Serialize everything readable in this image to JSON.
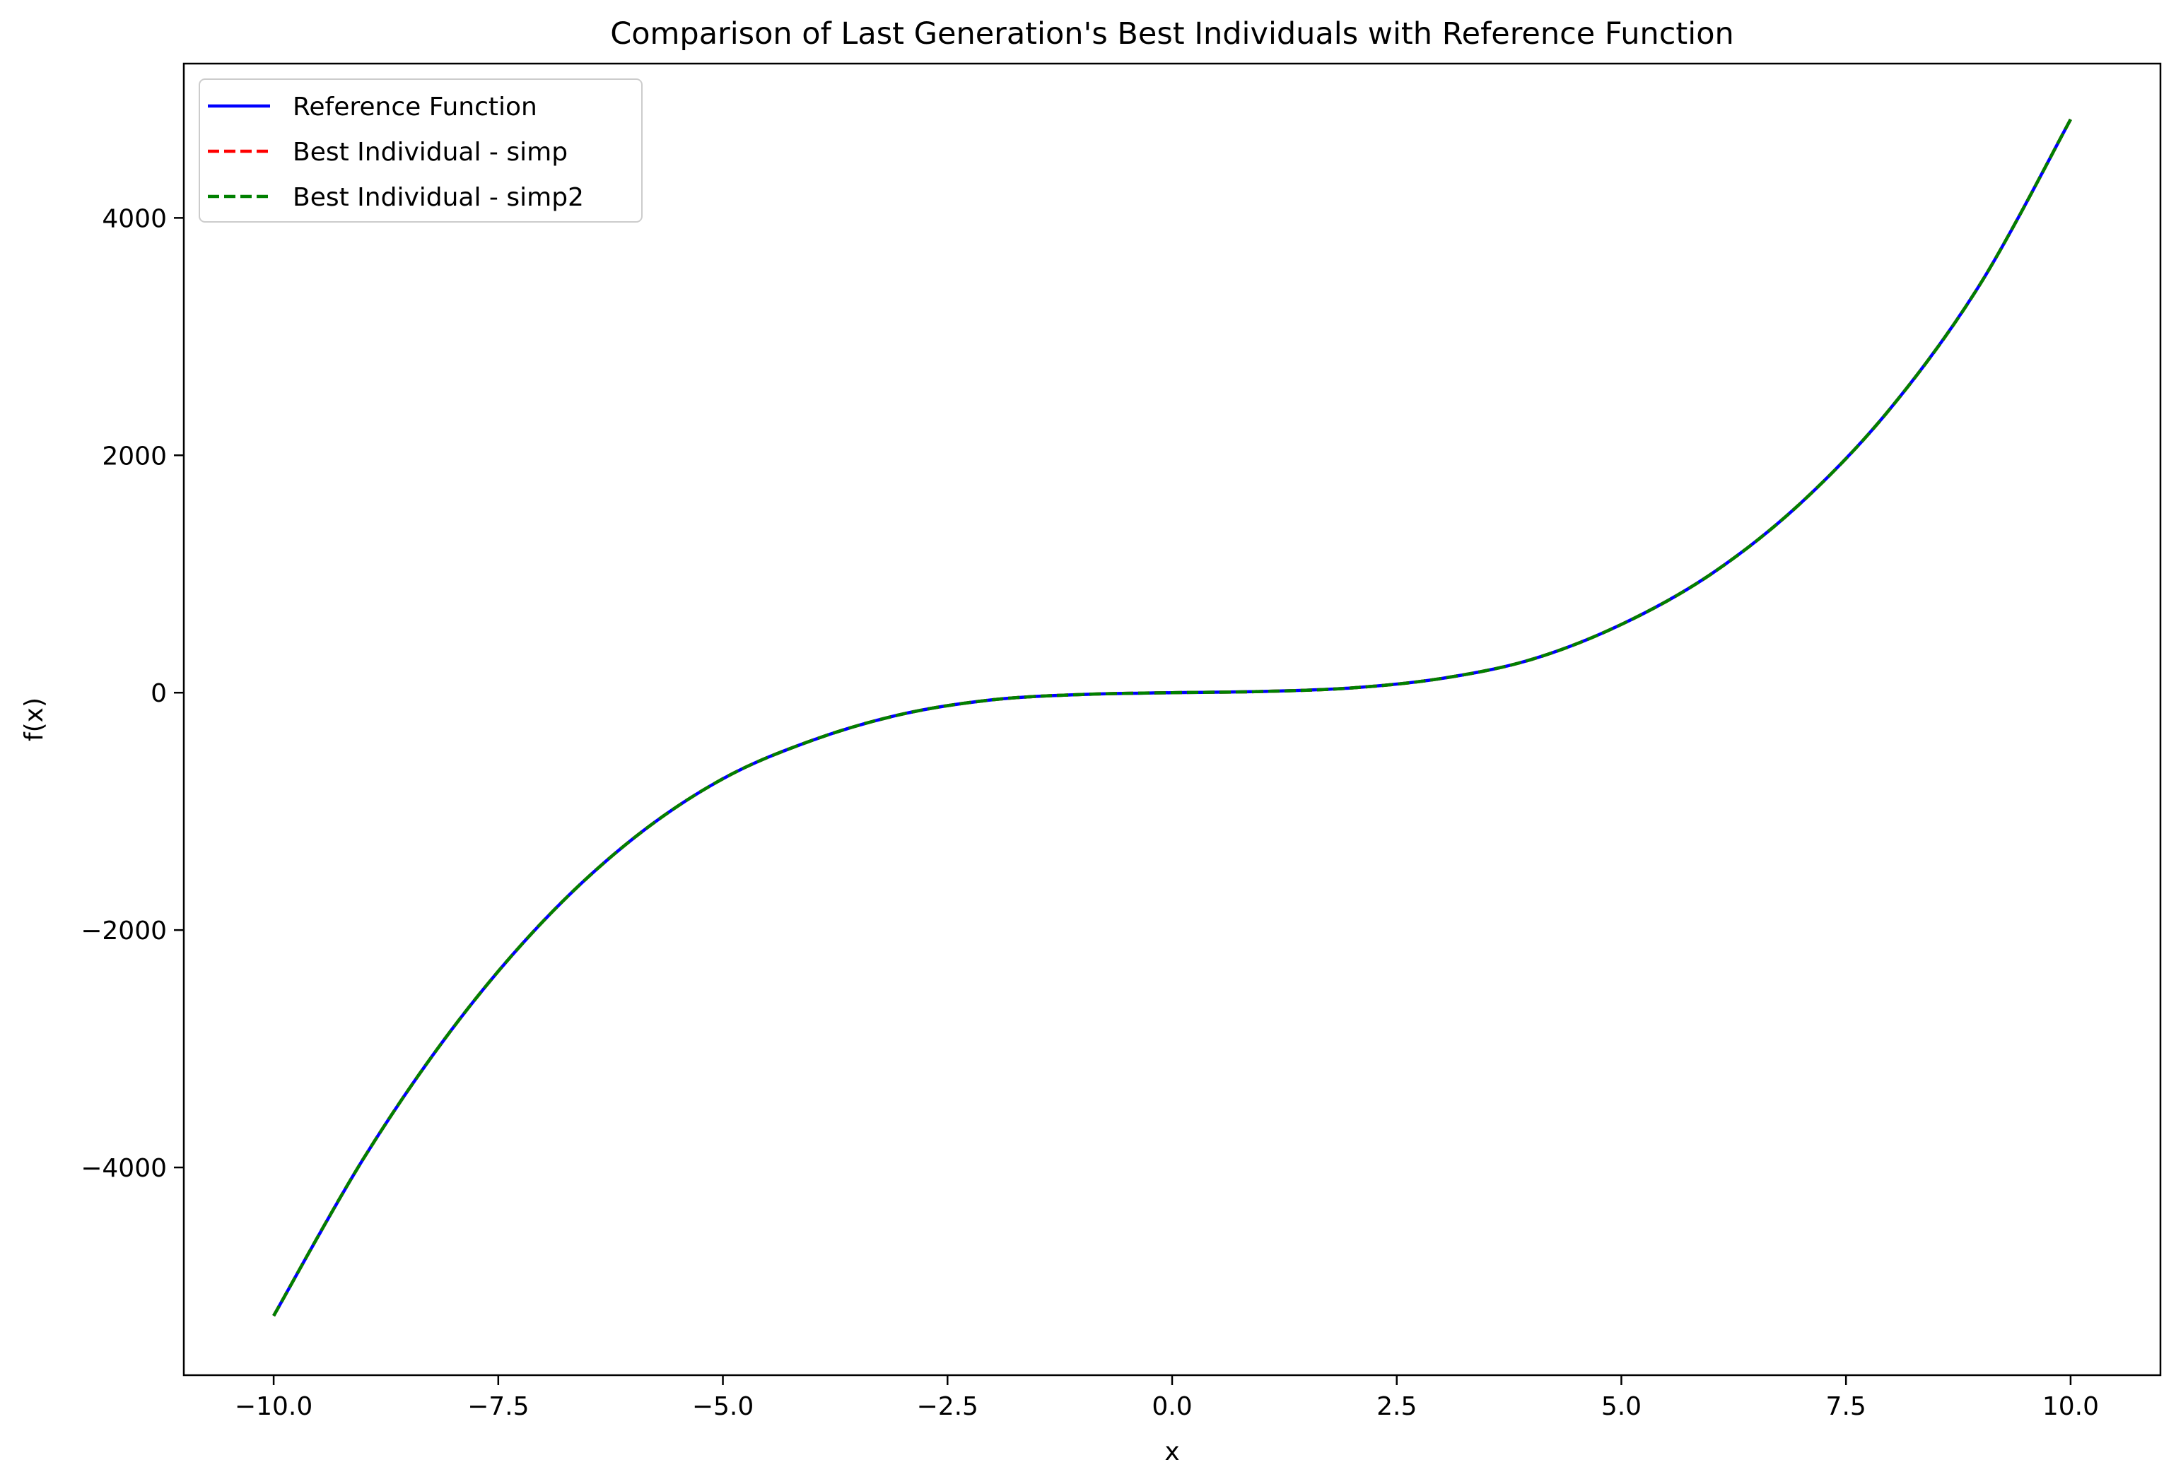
{
  "chart_data": {
    "type": "line",
    "title": "Comparison of Last Generation's Best Individuals with Reference Function",
    "xlabel": "x",
    "ylabel": "f(x)",
    "xlim": [
      -11,
      11
    ],
    "ylim": [
      -5750,
      5300
    ],
    "x_ticks": [
      -10.0,
      -7.5,
      -5.0,
      -2.5,
      0.0,
      2.5,
      5.0,
      7.5,
      10.0
    ],
    "x_tick_labels": [
      "−10.0",
      "−7.5",
      "−5.0",
      "−2.5",
      "0.0",
      "2.5",
      "5.0",
      "7.5",
      "10.0"
    ],
    "y_ticks": [
      -4000,
      -2000,
      0,
      2000,
      4000
    ],
    "y_tick_labels": [
      "−4000",
      "−2000",
      "0",
      "2000",
      "4000"
    ],
    "grid": false,
    "legend_position": "top-left",
    "x": [
      -10,
      -9,
      -8,
      -7,
      -6,
      -5,
      -4,
      -3,
      -2,
      -1,
      0,
      1,
      2,
      3,
      4,
      5,
      6,
      7,
      8,
      9,
      10
    ],
    "series": [
      {
        "name": "Reference Function",
        "color": "#0000ff",
        "style": "solid",
        "values": [
          -5250,
          -3925,
          -2820,
          -1925,
          -1230,
          -725,
          -400,
          -180,
          -60,
          -15,
          0,
          10,
          40,
          120,
          280,
          575,
          1000,
          1600,
          2400,
          3450,
          4830
        ]
      },
      {
        "name": "Best Individual - simp",
        "color": "#ff0000",
        "style": "dashed",
        "values": [
          -5250,
          -3925,
          -2820,
          -1925,
          -1230,
          -725,
          -400,
          -180,
          -60,
          -15,
          0,
          10,
          40,
          120,
          280,
          575,
          1000,
          1600,
          2400,
          3450,
          4830
        ]
      },
      {
        "name": "Best Individual - simp2",
        "color": "#008000",
        "style": "dashed",
        "values": [
          -5250,
          -3925,
          -2820,
          -1925,
          -1230,
          -725,
          -400,
          -180,
          -60,
          -15,
          0,
          10,
          40,
          120,
          280,
          575,
          1000,
          1600,
          2400,
          3450,
          4830
        ]
      }
    ]
  }
}
